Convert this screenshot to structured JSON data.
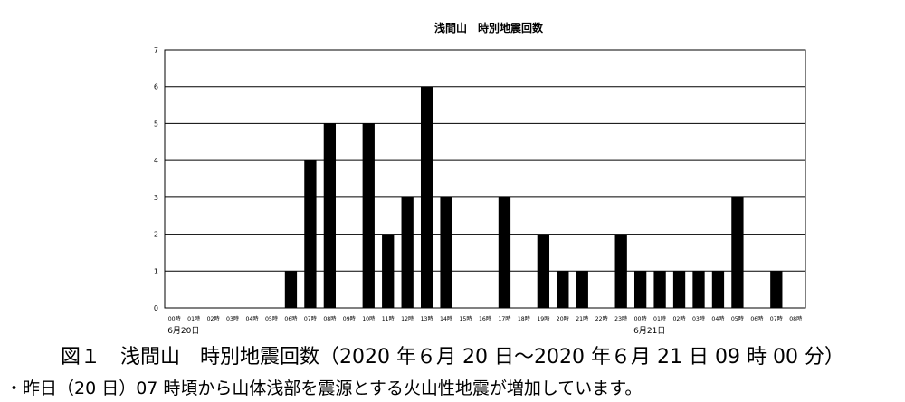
{
  "chart_data": {
    "type": "bar",
    "title": "浅間山　時別地震回数",
    "xlabel": "",
    "ylabel": "",
    "ylim": [
      0,
      7
    ],
    "yticks": [
      "0",
      "1",
      "2",
      "3",
      "4",
      "5",
      "6",
      "7"
    ],
    "grid": true,
    "categories": [
      "00時",
      "01時",
      "02時",
      "03時",
      "04時",
      "05時",
      "06時",
      "07時",
      "08時",
      "09時",
      "10時",
      "11時",
      "12時",
      "13時",
      "14時",
      "15時",
      "16時",
      "17時",
      "18時",
      "19時",
      "20時",
      "21時",
      "22時",
      "23時",
      "00時",
      "01時",
      "02時",
      "03時",
      "04時",
      "05時",
      "06時",
      "07時",
      "08時"
    ],
    "values": [
      0,
      0,
      0,
      0,
      0,
      0,
      1,
      4,
      5,
      0,
      5,
      2,
      3,
      6,
      3,
      0,
      0,
      3,
      0,
      2,
      1,
      1,
      0,
      2,
      1,
      1,
      1,
      1,
      1,
      3,
      0,
      1,
      0
    ],
    "date_labels": [
      {
        "index": 0,
        "text": "6月20日"
      },
      {
        "index": 24,
        "text": "6月21日"
      }
    ],
    "bar_color": "#000000"
  },
  "caption": "図１　浅間山　時別地震回数（2020 年６月 20 日～2020 年６月 21 日 09 時 00 分）",
  "note": "・昨日（20 日）07 時頃から山体浅部を震源とする火山性地震が増加しています。"
}
